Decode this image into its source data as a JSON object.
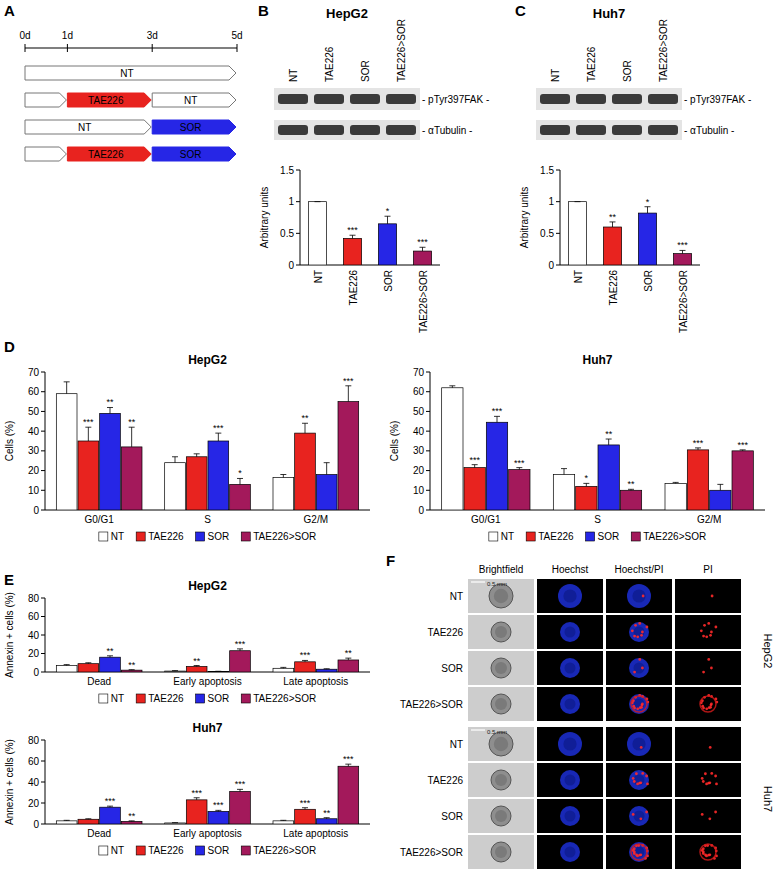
{
  "chart_data": [
    {
      "type": "bar",
      "y_label": "Arbitrary units",
      "categories": [
        "NT",
        "TAE226",
        "SOR",
        "TAE226>SOR"
      ],
      "values": [
        1,
        0.42,
        0.65,
        0.22
      ],
      "errors": [
        0,
        0.05,
        0.12,
        0.06
      ],
      "stars": [
        null,
        "***",
        "*",
        "***"
      ],
      "colors": [
        "#ffffff",
        "#e8231f",
        "#2626e6",
        "#a3195b"
      ],
      "ylim": [
        0,
        1.5
      ],
      "yticks": [
        0,
        0.5,
        1,
        1.5
      ],
      "grid": false
    },
    {
      "type": "bar",
      "y_label": "Arbitrary units",
      "categories": [
        "NT",
        "TAE226",
        "SOR",
        "TAE226>SOR"
      ],
      "values": [
        1,
        0.6,
        0.82,
        0.18
      ],
      "errors": [
        0,
        0.08,
        0.1,
        0.05
      ],
      "stars": [
        null,
        "**",
        "*",
        "***"
      ],
      "colors": [
        "#ffffff",
        "#e8231f",
        "#2626e6",
        "#a3195b"
      ],
      "ylim": [
        0,
        1.5
      ],
      "yticks": [
        0,
        0.5,
        1,
        1.5
      ],
      "grid": false
    },
    {
      "type": "bar",
      "title": "HepG2",
      "y_label": "Cells (%)",
      "categories": [
        "G0/G1",
        "S",
        "G2/M"
      ],
      "series": [
        {
          "name": "NT",
          "color": "#ffffff",
          "values": [
            59,
            24,
            16.5
          ],
          "errors": [
            6,
            3,
            1.5
          ],
          "stars": [
            null,
            null,
            null
          ]
        },
        {
          "name": "TAE226",
          "color": "#e8231f",
          "values": [
            35,
            27,
            39
          ],
          "errors": [
            7,
            1.5,
            5
          ],
          "stars": [
            "***",
            null,
            "**"
          ]
        },
        {
          "name": "SOR",
          "color": "#2626e6",
          "values": [
            49,
            35,
            18
          ],
          "errors": [
            3,
            4,
            6
          ],
          "stars": [
            "**",
            "***",
            null
          ]
        },
        {
          "name": "TAE226>SOR",
          "color": "#a3195b",
          "values": [
            32,
            13,
            55
          ],
          "errors": [
            10,
            3,
            8
          ],
          "stars": [
            "**",
            "*",
            "***"
          ]
        }
      ],
      "ylim": [
        0,
        70
      ],
      "yticks": [
        0,
        10,
        20,
        30,
        40,
        50,
        60,
        70
      ],
      "legend": "bottom",
      "grid": false
    },
    {
      "type": "bar",
      "title": "Huh7",
      "y_label": "Cells (%)",
      "categories": [
        "G0/G1",
        "S",
        "G2/M"
      ],
      "series": [
        {
          "name": "NT",
          "color": "#ffffff",
          "values": [
            62,
            18,
            13.5
          ],
          "errors": [
            1,
            3,
            0.5
          ],
          "stars": [
            null,
            null,
            null
          ]
        },
        {
          "name": "TAE226",
          "color": "#e8231f",
          "values": [
            21.5,
            12,
            30.5
          ],
          "errors": [
            1.5,
            1.5,
            1
          ],
          "stars": [
            "***",
            "*",
            "***"
          ]
        },
        {
          "name": "SOR",
          "color": "#2626e6",
          "values": [
            44.5,
            33,
            10
          ],
          "errors": [
            3,
            3,
            3
          ],
          "stars": [
            "***",
            "**",
            null
          ]
        },
        {
          "name": "TAE226>SOR",
          "color": "#a3195b",
          "values": [
            20.5,
            10,
            30
          ],
          "errors": [
            1,
            0.5,
            0.5
          ],
          "stars": [
            "***",
            "**",
            "***"
          ]
        }
      ],
      "ylim": [
        0,
        70
      ],
      "yticks": [
        0,
        10,
        20,
        30,
        40,
        50,
        60,
        70
      ],
      "legend": "bottom",
      "grid": false
    },
    {
      "type": "bar",
      "title": "HepG2",
      "y_label": "Annexin + cells (%)",
      "categories": [
        "Dead",
        "Early apoptosis",
        "Late apoptosis"
      ],
      "series": [
        {
          "name": "NT",
          "color": "#ffffff",
          "values": [
            7,
            1,
            4
          ],
          "errors": [
            1,
            0.5,
            1
          ],
          "stars": [
            null,
            null,
            null
          ]
        },
        {
          "name": "TAE226",
          "color": "#e8231f",
          "values": [
            9,
            6,
            11
          ],
          "errors": [
            1,
            1,
            1.5
          ],
          "stars": [
            null,
            "**",
            "***"
          ]
        },
        {
          "name": "SOR",
          "color": "#2626e6",
          "values": [
            16,
            0.5,
            3
          ],
          "errors": [
            1.5,
            0.3,
            0.5
          ],
          "stars": [
            "**",
            null,
            null
          ]
        },
        {
          "name": "TAE226>SOR",
          "color": "#a3195b",
          "values": [
            2,
            23,
            13
          ],
          "errors": [
            0.5,
            2,
            2
          ],
          "stars": [
            "**",
            "***",
            "**"
          ]
        }
      ],
      "ylim": [
        0,
        80
      ],
      "yticks": [
        0,
        20,
        40,
        60,
        80
      ],
      "legend": "bottom",
      "grid": false
    },
    {
      "type": "bar",
      "title": "Huh7",
      "y_label": "Annexin + cells (%)",
      "categories": [
        "Dead",
        "Early apoptosis",
        "Late apoptosis"
      ],
      "series": [
        {
          "name": "NT",
          "color": "#ffffff",
          "values": [
            3,
            1,
            3
          ],
          "errors": [
            0.5,
            0.3,
            0.5
          ],
          "stars": [
            null,
            null,
            null
          ]
        },
        {
          "name": "TAE226",
          "color": "#e8231f",
          "values": [
            4.5,
            23,
            14
          ],
          "errors": [
            0.5,
            2,
            1.5
          ],
          "stars": [
            null,
            "***",
            "***"
          ]
        },
        {
          "name": "SOR",
          "color": "#2626e6",
          "values": [
            16,
            12,
            5
          ],
          "errors": [
            1,
            1,
            1
          ],
          "stars": [
            "***",
            "***",
            "**"
          ]
        },
        {
          "name": "TAE226>SOR",
          "color": "#a3195b",
          "values": [
            2.5,
            31,
            55
          ],
          "errors": [
            0.5,
            2,
            2
          ],
          "stars": [
            "**",
            "***",
            "***"
          ]
        }
      ],
      "ylim": [
        0,
        80
      ],
      "yticks": [
        0,
        20,
        40,
        60,
        80
      ],
      "legend": "bottom",
      "grid": false
    }
  ],
  "figure": {
    "panel_labels": [
      "A",
      "B",
      "C",
      "D",
      "E",
      "F"
    ],
    "timeline": {
      "ticks": [
        {
          "value": 0,
          "label": "0d"
        },
        {
          "value": 1,
          "label": "1d"
        },
        {
          "value": 3,
          "label": "3d"
        },
        {
          "value": 5,
          "label": "5d"
        }
      ],
      "rows": [
        {
          "segments": [
            {
              "from": 0,
              "to": 5,
              "label": "NT",
              "color": "#ffffff"
            }
          ]
        },
        {
          "segments": [
            {
              "from": 0,
              "to": 1,
              "label": null,
              "color": "#ffffff"
            },
            {
              "from": 1,
              "to": 3,
              "label": "TAE226",
              "color": "#e8231f"
            },
            {
              "from": 3,
              "to": 5,
              "label": "NT",
              "color": "#ffffff"
            }
          ]
        },
        {
          "segments": [
            {
              "from": 0,
              "to": 3,
              "label": "NT",
              "color": "#ffffff"
            },
            {
              "from": 3,
              "to": 5,
              "label": "SOR",
              "color": "#2626e6"
            }
          ]
        },
        {
          "segments": [
            {
              "from": 0,
              "to": 1,
              "label": null,
              "color": "#ffffff"
            },
            {
              "from": 1,
              "to": 3,
              "label": "TAE226",
              "color": "#e8231f"
            },
            {
              "from": 3,
              "to": 5,
              "label": "SOR",
              "color": "#2626e6"
            }
          ]
        }
      ]
    },
    "blots": [
      {
        "title": "HepG2",
        "lanes": [
          "NT",
          "TAE226",
          "SOR",
          "TAE226>SOR"
        ],
        "bands": [
          "- pTyr397FAK -",
          "- αTubulin -"
        ]
      },
      {
        "title": "Huh7",
        "lanes": [
          "NT",
          "TAE226",
          "SOR",
          "TAE226>SOR"
        ],
        "bands": [
          "- pTyr397FAK -",
          "- αTubulin -"
        ]
      }
    ],
    "images": {
      "columns": [
        "Brightfield",
        "Hoechst",
        "Hoechst/PI",
        "PI"
      ],
      "groups": [
        {
          "name": "HepG2",
          "scale_bar": "0.5 mm",
          "rows": [
            "NT",
            "TAE226",
            "SOR",
            "TAE226>SOR"
          ]
        },
        {
          "name": "Huh7",
          "scale_bar": "0.5 mm",
          "rows": [
            "NT",
            "TAE226",
            "SOR",
            "TAE226>SOR"
          ]
        }
      ]
    }
  }
}
